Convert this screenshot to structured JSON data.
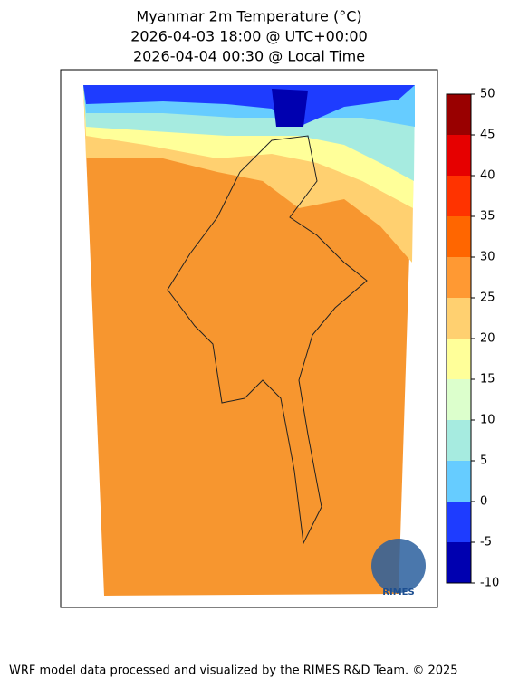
{
  "title": [
    "Myanmar 2m Temperature (°C)",
    "2026-04-03 18:00 @ UTC+00:00",
    "2026-04-04 00:30 @ Local Time"
  ],
  "colorbar": {
    "lim": [
      -10,
      50
    ],
    "ticks": [
      -10,
      -5,
      0,
      5,
      10,
      15,
      20,
      25,
      30,
      35,
      40,
      45,
      50
    ],
    "colors": [
      "#0000b0",
      "#1e3cff",
      "#66ccff",
      "#a6ebe0",
      "#dcffcc",
      "#ffff99",
      "#ffd070",
      "#ff9933",
      "#ff6600",
      "#ff3300",
      "#e60000",
      "#990000"
    ]
  },
  "logo": "RIMES",
  "footer": "WRF model data processed and visualized by the RIMES R&D Team. © 2025"
}
